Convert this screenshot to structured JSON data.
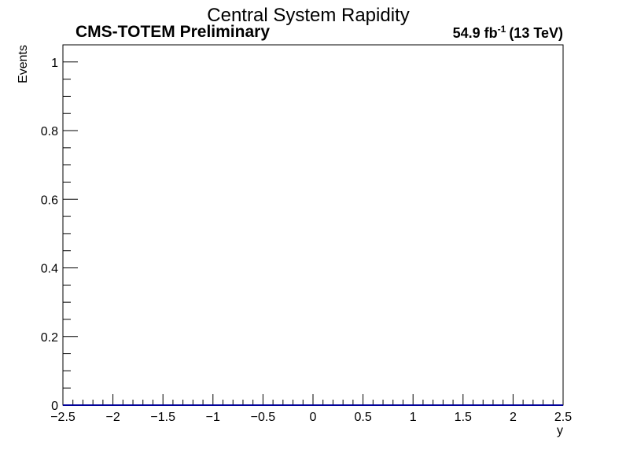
{
  "chart_data": {
    "type": "line",
    "title": "Central System Rapidity",
    "experiment_label": "CMS-TOTEM Preliminary",
    "lumi_label": {
      "value": "54.9 fb",
      "exponent": "-1",
      "energy": "(13 TeV)"
    },
    "xlabel": "y",
    "ylabel": "Events",
    "xlim": [
      -2.5,
      2.5
    ],
    "ylim": [
      0,
      1.05
    ],
    "x_ticks": [
      {
        "value": -2.5,
        "label": "−2.5"
      },
      {
        "value": -2,
        "label": "−2"
      },
      {
        "value": -1.5,
        "label": "−1.5"
      },
      {
        "value": -1,
        "label": "−1"
      },
      {
        "value": -0.5,
        "label": "−0.5"
      },
      {
        "value": 0,
        "label": "0"
      },
      {
        "value": 0.5,
        "label": "0.5"
      },
      {
        "value": 1,
        "label": "1"
      },
      {
        "value": 1.5,
        "label": "1.5"
      },
      {
        "value": 2,
        "label": "2"
      },
      {
        "value": 2.5,
        "label": "2.5"
      }
    ],
    "y_ticks": [
      {
        "value": 0,
        "label": "0"
      },
      {
        "value": 0.2,
        "label": "0.2"
      },
      {
        "value": 0.4,
        "label": "0.4"
      },
      {
        "value": 0.6,
        "label": "0.6"
      },
      {
        "value": 0.8,
        "label": "0.8"
      },
      {
        "value": 1,
        "label": "1"
      }
    ],
    "series": [
      {
        "x": [
          -2.5,
          2.5
        ],
        "y": [
          0,
          0
        ]
      }
    ],
    "grid": false,
    "legend": "none",
    "colors": {
      "axis": "#000000",
      "series": "#000099"
    }
  }
}
